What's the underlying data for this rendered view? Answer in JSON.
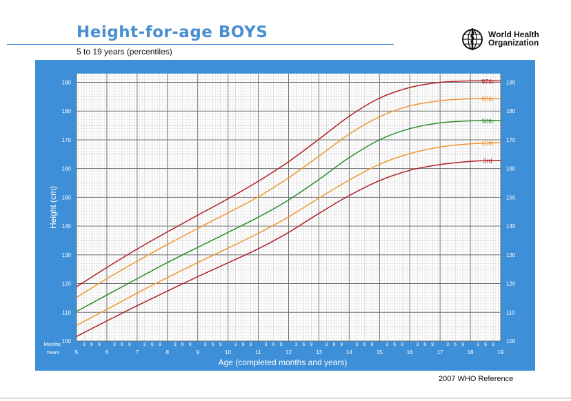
{
  "header": {
    "title": "Height-for-age  BOYS",
    "subtitle": "5 to 19 years (percentiles)",
    "org_line1": "World Health",
    "org_line2": "Organization",
    "logo_icon": "who-emblem-icon"
  },
  "footer": {
    "reference": "2007 WHO Reference"
  },
  "colors": {
    "panel": "#3d8fd8",
    "plot": "#ffffff",
    "p97": "#b01e23",
    "p85": "#f0962d",
    "p50": "#2c8a2c",
    "p15": "#f0962d",
    "p3": "#b01e23"
  },
  "chart_data": {
    "type": "line",
    "title": "Height-for-age  BOYS",
    "subtitle": "5 to 19 years (percentiles)",
    "xlabel": "Age (completed months and years)",
    "ylabel": "Height (cm)",
    "xlim": [
      5,
      19
    ],
    "ylim": [
      100,
      193
    ],
    "x_tick_years": [
      "5",
      "6",
      "7",
      "8",
      "9",
      "10",
      "11",
      "12",
      "13",
      "14",
      "15",
      "16",
      "17",
      "18",
      "19"
    ],
    "x_tick_months": [
      "3",
      "6",
      "9"
    ],
    "row_label_months": "Months",
    "row_label_years": "Years",
    "y_ticks": [
      "100",
      "110",
      "120",
      "130",
      "140",
      "150",
      "160",
      "170",
      "180",
      "190"
    ],
    "grid": true,
    "x": [
      5,
      6,
      7,
      8,
      9,
      10,
      11,
      12,
      13,
      14,
      15,
      16,
      17,
      18,
      19
    ],
    "series": [
      {
        "name": "97th",
        "color": "#b01e23",
        "values": [
          118.9,
          125.6,
          132.0,
          138.0,
          143.8,
          149.5,
          155.6,
          162.4,
          170.2,
          178.2,
          184.5,
          188.2,
          190.0,
          190.5,
          190.5
        ]
      },
      {
        "name": "85th",
        "color": "#f0962d",
        "values": [
          115.2,
          121.7,
          127.8,
          133.6,
          139.2,
          144.6,
          150.2,
          156.8,
          164.3,
          172.0,
          178.0,
          181.8,
          183.6,
          184.3,
          184.4
        ]
      },
      {
        "name": "50th",
        "color": "#2c8a2c",
        "values": [
          110.3,
          116.0,
          121.7,
          127.3,
          132.6,
          137.8,
          143.1,
          149.1,
          156.2,
          163.8,
          170.0,
          173.9,
          175.9,
          176.6,
          176.7
        ]
      },
      {
        "name": "15th",
        "color": "#f0962d",
        "values": [
          105.5,
          111.0,
          116.7,
          122.1,
          127.3,
          132.3,
          137.5,
          143.2,
          149.7,
          156.0,
          161.5,
          165.2,
          167.5,
          168.6,
          169.0
        ]
      },
      {
        "name": "3rd",
        "color": "#b01e23",
        "values": [
          101.6,
          107.0,
          112.3,
          117.4,
          122.4,
          127.2,
          132.1,
          137.8,
          144.4,
          150.6,
          155.8,
          159.4,
          161.4,
          162.5,
          162.9
        ]
      }
    ]
  }
}
